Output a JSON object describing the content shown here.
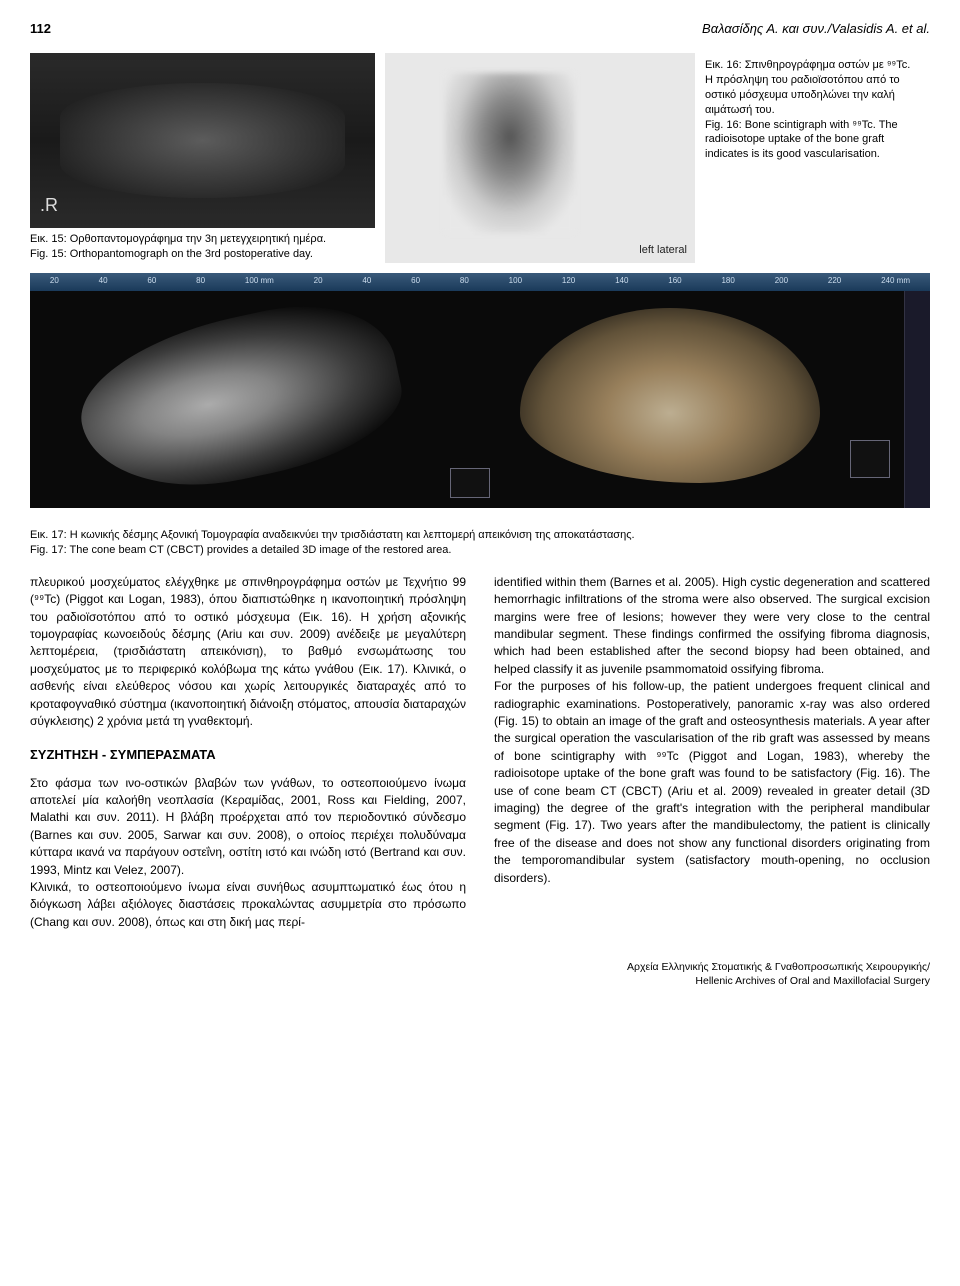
{
  "header": {
    "page_number": "112",
    "running_head": "Βαλασίδης Α. και συν./Valasidis A. et al."
  },
  "fig15": {
    "r_marker": ".R",
    "caption_el": "Εικ. 15: Ορθοπαντομογράφημα την 3η μετεγχειρητική ημέρα.",
    "caption_en": "Fig. 15: Orthopantomograph on the 3rd postoperative day."
  },
  "fig16": {
    "lateral_label": "left lateral",
    "caption_el": "Εικ. 16: Σπινθηρογράφημα οστών με ⁹⁹Tc. Η πρόσληψη του ραδιοϊσοτόπου από το οστικό μόσχευμα υποδηλώνει την καλή αιμάτωσή του.",
    "caption_en": "Fig. 16: Bone scintigraph with ⁹⁹Tc. The radioisotope uptake of the bone graft indicates is its good vascularisation."
  },
  "fig17": {
    "ruler_values": [
      "20",
      "40",
      "60",
      "80",
      "100 mm",
      "20",
      "40",
      "60",
      "80",
      "100",
      "120",
      "140",
      "160",
      "180",
      "200",
      "220",
      "240 mm"
    ],
    "caption_el": "Εικ. 17: Η κωνικής δέσμης Αξονική Τομογραφία αναδεικνύει την τρισδιάστατη και λεπτομερή απεικόνιση της αποκατάστασης.",
    "caption_en": "Fig. 17: The cone beam CT (CBCT) provides a detailed 3D image of the restored area."
  },
  "col_left": {
    "para1": "πλευρικού μοσχεύματος ελέγχθηκε με σπινθηρογράφημα οστών με Τεχνήτιο 99 (⁹⁹Tc) (Piggot και Logan, 1983), όπου διαπιστώθηκε η ικανοποιητική πρόσληψη του ραδιοϊσοτόπου από το οστικό μόσχευμα (Εικ. 16). Η χρήση αξονικής τομογραφίας κωνοειδούς δέσμης (Ariu και συν. 2009) ανέδειξε με μεγαλύτερη λεπτομέρεια, (τρισδιάστατη απεικόνιση), το βαθμό ενσωμάτωσης του μοσχεύματος με το περιφερικό κολόβωμα της κάτω γνάθου (Εικ. 17). Κλινικά, ο ασθενής είναι ελεύθερος νόσου και χωρίς λειτουργικές διαταραχές από το κροταφογναθικό σύστημα (ικανοποιητική διάνοιξη στόματος, απουσία διαταραχών σύγκλεισης) 2 χρόνια μετά τη γναθεκτομή.",
    "section_heading": "ΣΥΖΗΤΗΣΗ - ΣΥΜΠΕΡΑΣΜΑΤΑ",
    "para2": "Στο φάσμα των ινο-οστικών βλαβών των γνάθων, το οστεοποιούμενο ίνωμα αποτελεί μία καλοήθη νεοπλασία (Κεραμίδας, 2001, Ross και Fielding, 2007, Malathi και συν. 2011). Η βλάβη προέρχεται από τον περιοδοντικό σύνδεσμο (Barnes και συν. 2005, Sarwar και συν. 2008), ο οποίος περιέχει πολυδύναμα κύτταρα ικανά να παράγουν οστεΐνη, οστίτη ιστό και ινώδη ιστό (Bertrand και συν. 1993, Mintz και Velez, 2007).",
    "para3": "Κλινικά, το οστεοποιούμενο ίνωμα είναι συνήθως ασυμπτωματικό έως ότου η διόγκωση λάβει αξιόλογες διαστάσεις προκαλώντας ασυμμετρία στο πρόσωπο (Chang και συν. 2008), όπως και στη δική μας περί-"
  },
  "col_right": {
    "para1": "identified within them (Barnes et al. 2005). High cystic degeneration and scattered hemorrhagic infiltrations of the stroma were also observed. The surgical excision margins were free of lesions; however they were very close to the central mandibular segment. These findings confirmed the ossifying fibroma diagnosis, which had been established after the second biopsy had been obtained, and helped classify it as juvenile psammomatoid ossifying fibroma.",
    "para2": "For the purposes of his follow-up, the patient undergoes frequent clinical and radiographic examinations. Postoperatively, panoramic x-ray was also ordered (Fig. 15) to obtain an image of the graft and osteosynthesis materials. A year after the surgical operation the vascularisation of the rib graft was assessed by means of bone scintigraphy with ⁹⁹Tc (Piggot and Logan, 1983), whereby the radioisotope uptake of the bone graft was found to be satisfactory (Fig. 16). The use of cone beam CT (CBCT) (Ariu et al. 2009) revealed in greater detail (3D imaging) the degree of the graft's integration with the peripheral mandibular segment (Fig. 17). Two years after the mandibulectomy, the patient is clinically free of the disease and does not show any functional disorders originating from the temporomandibular system (satisfactory mouth-opening, no occlusion disorders)."
  },
  "footer": {
    "line1": "Αρχεία Ελληνικής Στοματικής & Γναθοπροσωπικής Χειρουργικής/",
    "line2": "Hellenic Archives of Oral and Maxillofacial Surgery"
  },
  "colors": {
    "text": "#000000",
    "bg": "#ffffff",
    "xray_dark": "#1a1a1a",
    "scinti_bg": "#e8e8e8",
    "ct_bg": "#0a0a0a",
    "ruler": "#1a3a5a"
  }
}
